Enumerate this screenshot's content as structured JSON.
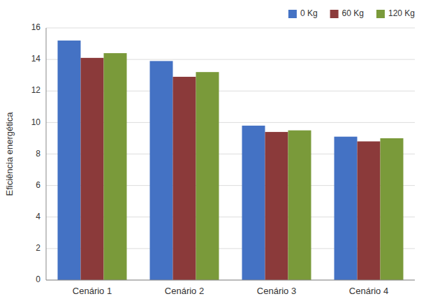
{
  "chart_data": {
    "type": "bar",
    "y_label": "Eficiência energética",
    "categories": [
      "Cenário 1",
      "Cenário 2",
      "Cenário 3",
      "Cenário 4"
    ],
    "series": [
      {
        "name": "0 Kg",
        "color": "#4472C4",
        "values": [
          15.2,
          13.9,
          9.8,
          9.1
        ]
      },
      {
        "name": "60 Kg",
        "color": "#8B3A3A",
        "values": [
          14.1,
          12.9,
          9.4,
          8.8
        ]
      },
      {
        "name": "120 Kg",
        "color": "#7A9A3A",
        "values": [
          14.4,
          13.2,
          9.5,
          9.0
        ]
      }
    ],
    "ylim": [
      0,
      16
    ],
    "yticks": [
      0,
      2,
      4,
      6,
      8,
      10,
      12,
      14,
      16
    ],
    "grid": true,
    "legend": "upper right"
  }
}
